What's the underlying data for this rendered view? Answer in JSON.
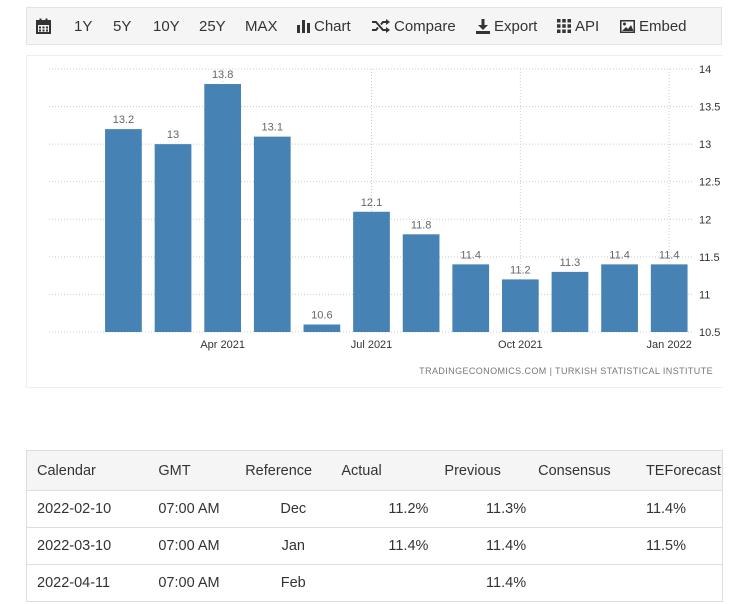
{
  "toolbar": {
    "items": [
      {
        "icon": "calendar-icon",
        "label": ""
      },
      {
        "icon": "",
        "label": "1Y"
      },
      {
        "icon": "",
        "label": "5Y"
      },
      {
        "icon": "",
        "label": "10Y"
      },
      {
        "icon": "",
        "label": "25Y"
      },
      {
        "icon": "",
        "label": "MAX"
      },
      {
        "icon": "bar-chart-icon",
        "label": "Chart"
      },
      {
        "icon": "compare-icon",
        "label": "Compare"
      },
      {
        "icon": "download-icon",
        "label": "Export"
      },
      {
        "icon": "grid-icon",
        "label": "API"
      },
      {
        "icon": "image-icon",
        "label": "Embed"
      }
    ]
  },
  "chart_data": {
    "type": "bar",
    "categories": [
      "2021-01",
      "2021-02",
      "2021-03",
      "2021-04",
      "2021-05",
      "2021-06",
      "2021-07",
      "2021-08",
      "2021-09",
      "2021-10",
      "2021-11",
      "2021-12",
      "2022-01"
    ],
    "values": [
      null,
      13.2,
      13,
      13.8,
      13.1,
      10.6,
      12.1,
      11.8,
      11.4,
      11.2,
      11.3,
      11.4,
      11.4
    ],
    "bar_labels": [
      "",
      "13.2",
      "13",
      "13.8",
      "13.1",
      "10.6",
      "12.1",
      "11.8",
      "11.4",
      "11.2",
      "11.3",
      "11.4",
      "11.4"
    ],
    "x_tick_labels": [
      {
        "index": 3,
        "label": "Apr 2021"
      },
      {
        "index": 6,
        "label": "Jul 2021"
      },
      {
        "index": 9,
        "label": "Oct 2021"
      },
      {
        "index": 12,
        "label": "Jan 2022"
      }
    ],
    "y_ticks": [
      "14",
      "13.5",
      "13",
      "12.5",
      "12",
      "11.5",
      "11",
      "10.5"
    ],
    "ylim": [
      10.5,
      14
    ],
    "y_axis_side": "right",
    "grid": true,
    "bar_color": "#4682b4",
    "title": "",
    "xlabel": "",
    "ylabel": ""
  },
  "source": "TRADINGECONOMICS.COM  |  TURKISH STATISTICAL INSTITUTE",
  "table": {
    "headers": [
      "Calendar",
      "GMT",
      "Reference",
      "Actual",
      "Previous",
      "Consensus",
      "TEForecast"
    ],
    "rows": [
      [
        "2022-02-10",
        "07:00 AM",
        "Dec",
        "11.2%",
        "11.3%",
        "",
        "11.4%"
      ],
      [
        "2022-03-10",
        "07:00 AM",
        "Jan",
        "11.4%",
        "11.4%",
        "",
        "11.5%"
      ],
      [
        "2022-04-11",
        "07:00 AM",
        "Feb",
        "",
        "11.4%",
        "",
        ""
      ]
    ]
  }
}
